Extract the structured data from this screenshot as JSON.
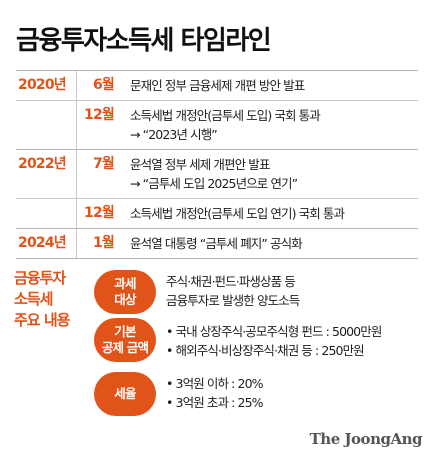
{
  "title": "금융투자소득세 타임라인",
  "timeline": [
    {
      "year": "2020년",
      "month": "6월",
      "lines": [
        "문재인 정부 금융세제 개편 방안 발표"
      ]
    },
    {
      "year": "",
      "month": "12월",
      "lines": [
        "소득세법 개정안(금투세 도입) 국회 통과",
        "→ “2023년 시행”"
      ]
    },
    {
      "year": "2022년",
      "month": "7월",
      "lines": [
        "윤석열 정부 세제 개편안 발표",
        "→ “금투세 도입 2025년으로 연기”"
      ]
    },
    {
      "year": "",
      "month": "12월",
      "lines": [
        "소득세법 개정안(금투세 도입 연기) 국회 통과"
      ]
    },
    {
      "year": "2024년",
      "month": "1월",
      "lines": [
        "윤석열 대통령 “금투세 폐지” 공식화"
      ]
    }
  ],
  "summary": {
    "label_lines": [
      "금융투자",
      "소득세",
      "주요 내용"
    ],
    "items": [
      {
        "pill_lines": [
          "과세",
          "대상"
        ],
        "lines": [
          "주식·채권·펀드·파생상품 등",
          "금융투자로 발생한 양도소득"
        ]
      },
      {
        "pill_lines": [
          "기본",
          "공제 금액"
        ],
        "lines": [
          "• 국내 상장주식·공모주식형 펀드 : 5000만원",
          "• 해외주식·비상장주식·채권 등 : 250만원"
        ]
      },
      {
        "pill_lines": [
          "세율"
        ],
        "lines": [
          "• 3억원 이하 : 20%",
          "• 3억원 초과 : 25%"
        ]
      }
    ]
  },
  "logo": "The JoongAng"
}
